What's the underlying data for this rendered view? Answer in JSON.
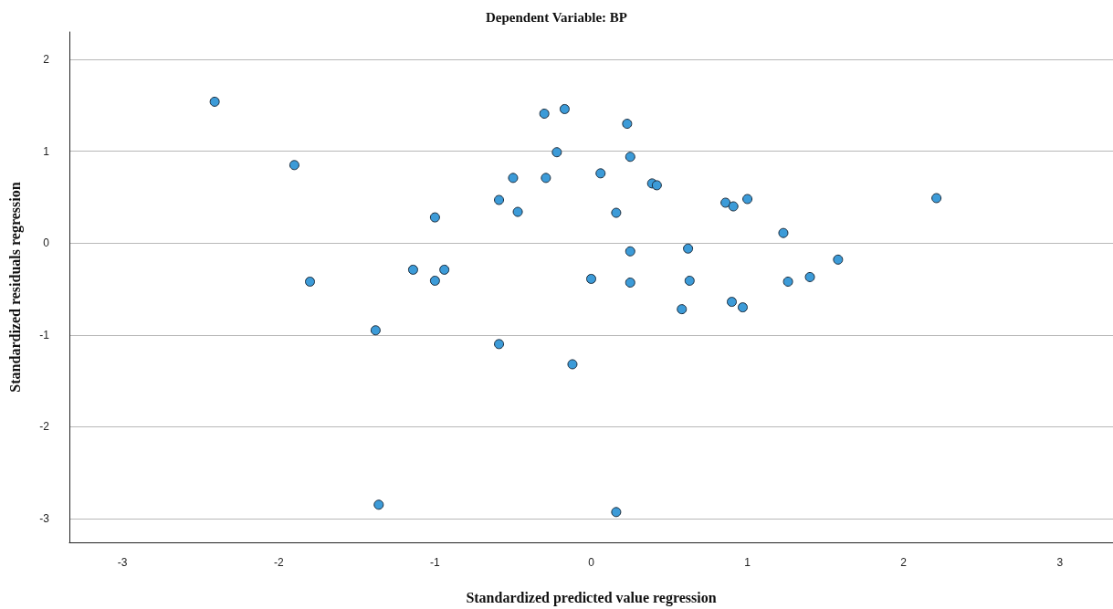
{
  "chart_data": {
    "type": "scatter",
    "title": "Dependent Variable: BP",
    "xlabel": "Standardized predicted value regression",
    "ylabel": "Standardized residuals regression",
    "x": [
      -2.41,
      -1.9,
      -1.8,
      -1.38,
      -1.36,
      -1.14,
      -1.0,
      -1.0,
      -0.94,
      -0.59,
      -0.59,
      -0.5,
      -0.47,
      -0.29,
      -0.3,
      -0.22,
      -0.17,
      -0.12,
      0.0,
      0.06,
      0.16,
      0.16,
      0.23,
      0.25,
      0.25,
      0.25,
      0.39,
      0.42,
      0.58,
      0.62,
      0.63,
      0.86,
      0.91,
      0.9,
      0.97,
      1.0,
      1.23,
      1.26,
      1.4,
      1.58,
      2.21
    ],
    "values": [
      1.54,
      0.85,
      -0.42,
      -0.95,
      -2.85,
      -0.29,
      0.28,
      -0.41,
      -0.29,
      0.47,
      -1.1,
      0.71,
      0.34,
      0.71,
      1.41,
      0.99,
      1.46,
      -1.32,
      -0.39,
      0.76,
      0.33,
      -2.93,
      1.3,
      0.94,
      -0.09,
      -0.43,
      0.65,
      0.63,
      -0.72,
      -0.06,
      -0.41,
      0.44,
      0.4,
      -0.64,
      -0.7,
      0.48,
      0.11,
      -0.42,
      -0.37,
      -0.18,
      0.49
    ],
    "color": "#3c9bd8",
    "marker": "circle",
    "grid": "y",
    "xlim": [
      -3.34,
      3.34
    ],
    "xticks": [
      -3,
      -2,
      -1,
      0,
      1,
      2,
      3
    ],
    "ylim": [
      -3.26,
      2.3
    ],
    "yticks": [
      -3,
      -2,
      -1,
      0,
      1,
      2
    ]
  }
}
